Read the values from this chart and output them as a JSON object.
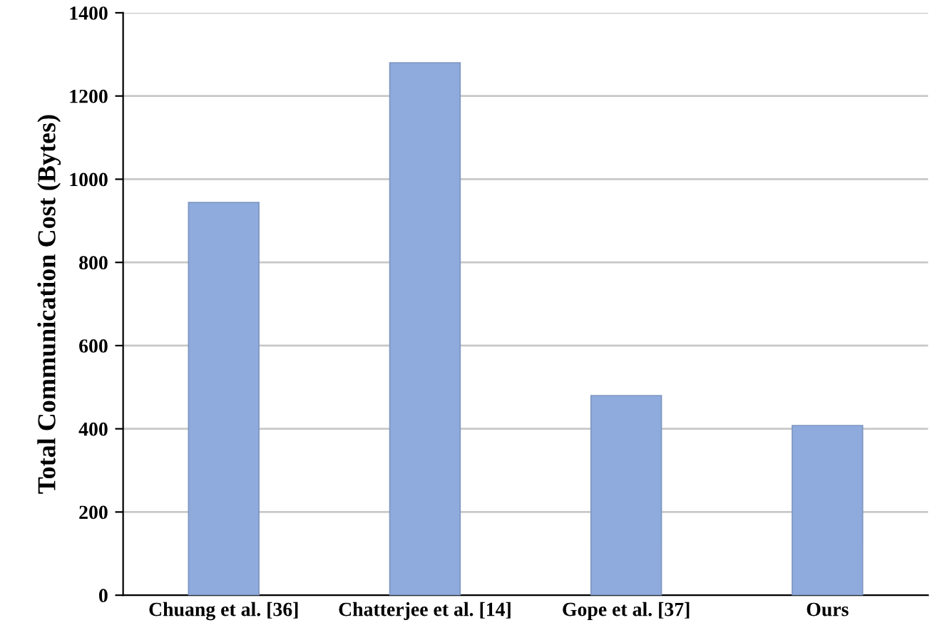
{
  "chart_data": {
    "type": "bar",
    "ylabel": "Total Communication Cost (Bytes)",
    "categories": [
      "Chuang et al. [36]",
      "Chatterjee et al. [14]",
      "Gope et al. [37]",
      "Ours"
    ],
    "values": [
      944,
      1280,
      480,
      408
    ],
    "color": "#8faadc",
    "ylim": [
      0,
      1400
    ],
    "yticks": [
      0,
      200,
      400,
      600,
      800,
      1000,
      1200,
      1400
    ],
    "grid": "y"
  }
}
